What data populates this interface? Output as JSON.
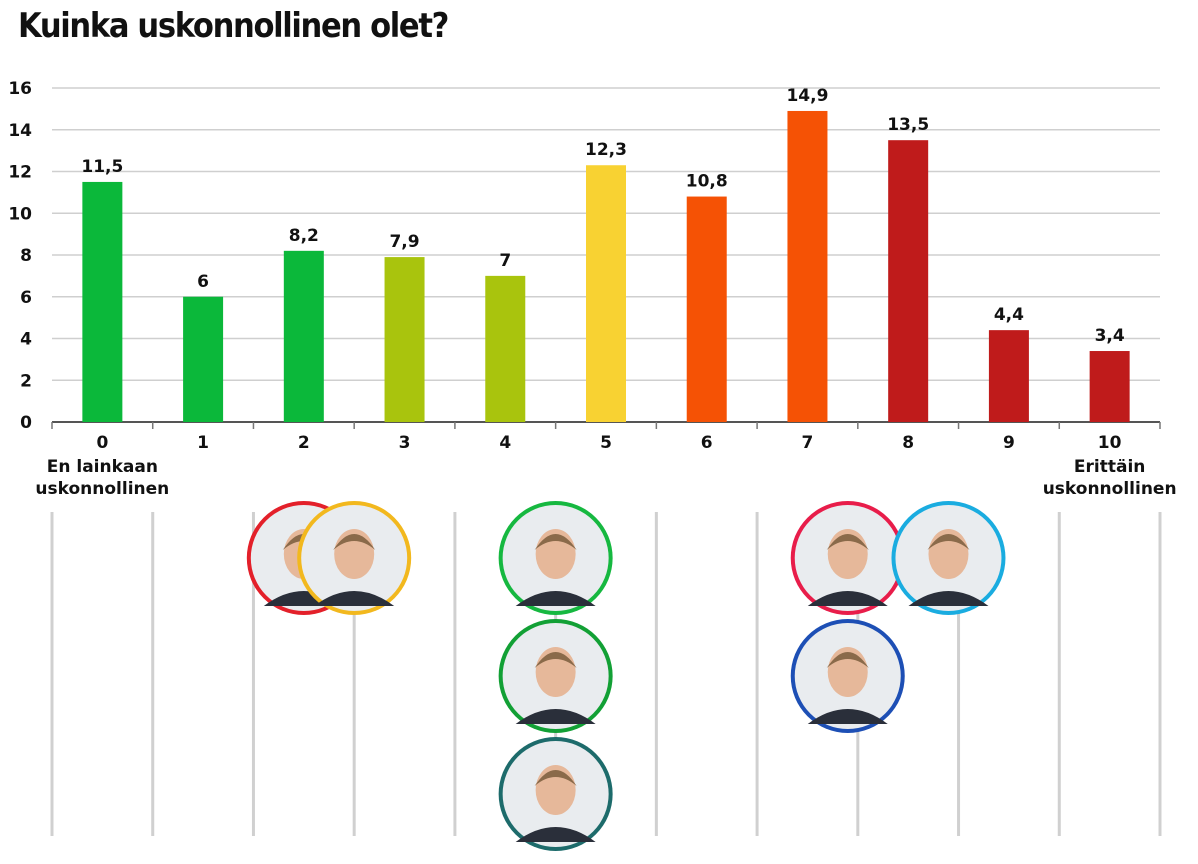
{
  "title": "Kuinka uskonnollinen olet?",
  "chart_data": {
    "type": "bar",
    "title": "Kuinka uskonnollinen olet?",
    "categories": [
      "0",
      "1",
      "2",
      "3",
      "4",
      "5",
      "6",
      "7",
      "8",
      "9",
      "10"
    ],
    "values": [
      11.5,
      6,
      8.2,
      7.9,
      7,
      12.3,
      10.8,
      14.9,
      13.5,
      4.4,
      3.4
    ],
    "value_labels": [
      "11,5",
      "6",
      "8,2",
      "7,9",
      "7",
      "12,3",
      "10,8",
      "14,9",
      "13,5",
      "4,4",
      "3,4"
    ],
    "bar_colors": [
      "#0bb83a",
      "#0bb83a",
      "#0bb83a",
      "#a9c40d",
      "#a9c40d",
      "#f8d232",
      "#f55205",
      "#f55205",
      "#bf1b1b",
      "#bf1b1b",
      "#bf1b1b"
    ],
    "ylim": [
      0,
      16
    ],
    "yticks": [
      0,
      2,
      4,
      6,
      8,
      10,
      12,
      14,
      16
    ],
    "grid": true,
    "xlabel": "",
    "ylabel": "",
    "scale_low_label": [
      "En lainkaan",
      "uskonnollinen"
    ],
    "scale_high_label": [
      "Erittäin",
      "uskonnollinen"
    ]
  },
  "candidates": [
    {
      "name": "candidate-red-female",
      "position": 2.5,
      "row": 0,
      "ring_color": "#e3202a"
    },
    {
      "name": "candidate-yellow-male",
      "position": 3,
      "row": 0,
      "ring_color": "#f2b81e"
    },
    {
      "name": "candidate-green-male-1",
      "position": 5,
      "row": 0,
      "ring_color": "#16b840"
    },
    {
      "name": "candidate-green-male-2",
      "position": 5,
      "row": 1,
      "ring_color": "#12a035"
    },
    {
      "name": "candidate-teal-male",
      "position": 5,
      "row": 2,
      "ring_color": "#1d6b6b"
    },
    {
      "name": "candidate-pink-female",
      "position": 7.9,
      "row": 0,
      "ring_color": "#e81d4a"
    },
    {
      "name": "candidate-blue-female",
      "position": 8.9,
      "row": 0,
      "ring_color": "#1aace0"
    },
    {
      "name": "candidate-blue-male",
      "position": 7.9,
      "row": 1,
      "ring_color": "#1d4fb5"
    }
  ]
}
